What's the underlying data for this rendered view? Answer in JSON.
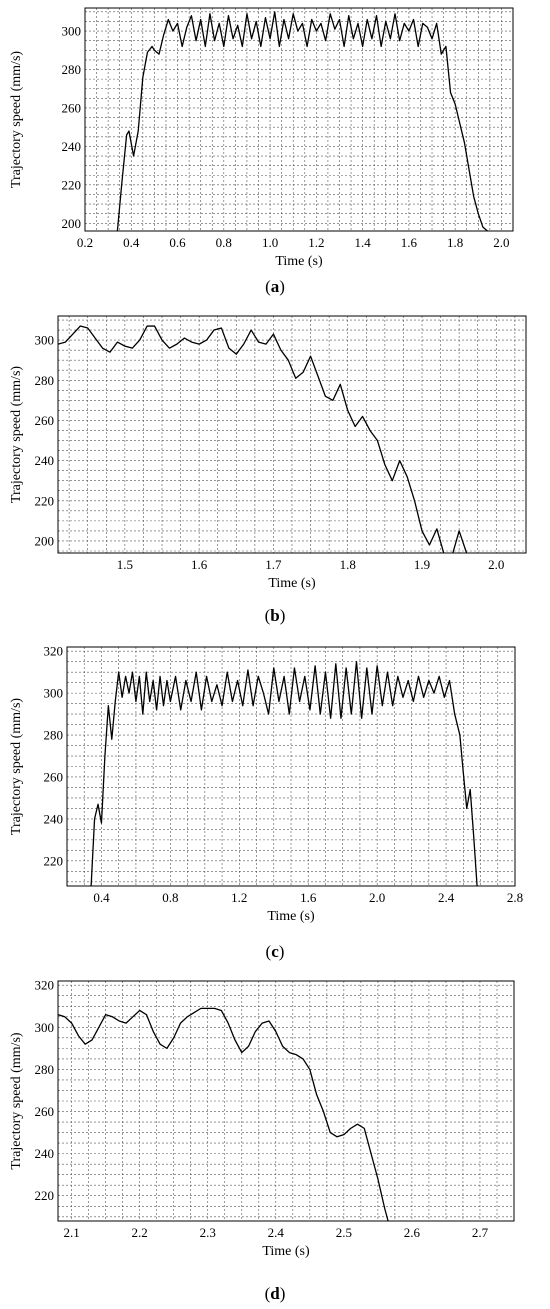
{
  "chart_data": [
    {
      "type": "line",
      "panel_label": "a",
      "xlabel": "Time (s)",
      "ylabel": "Trajectory speed (mm/s)",
      "xlim": [
        0.2,
        2.05
      ],
      "ylim": [
        196,
        312
      ],
      "xticks": [
        0.2,
        0.4,
        0.6,
        0.8,
        1.0,
        1.2,
        1.4,
        1.6,
        1.8,
        2.0
      ],
      "xtick_labels": [
        "0.2",
        "0.4",
        "0.6",
        "0.8",
        "1.0",
        "1.2",
        "1.4",
        "1.6",
        "1.8",
        "2.0"
      ],
      "yticks": [
        200,
        220,
        240,
        260,
        280,
        300
      ],
      "ytick_labels": [
        "200",
        "220",
        "240",
        "260",
        "280",
        "300"
      ],
      "grid": true,
      "series": [
        {
          "x": [
            0.34,
            0.36,
            0.38,
            0.39,
            0.41,
            0.43,
            0.45,
            0.47,
            0.49,
            0.5,
            0.52,
            0.54,
            0.56,
            0.58,
            0.6,
            0.62,
            0.64,
            0.66,
            0.68,
            0.7,
            0.72,
            0.74,
            0.76,
            0.78,
            0.8,
            0.82,
            0.84,
            0.86,
            0.88,
            0.9,
            0.92,
            0.94,
            0.96,
            0.98,
            1.0,
            1.02,
            1.04,
            1.06,
            1.08,
            1.1,
            1.12,
            1.14,
            1.16,
            1.18,
            1.2,
            1.22,
            1.24,
            1.26,
            1.28,
            1.3,
            1.32,
            1.34,
            1.36,
            1.38,
            1.4,
            1.42,
            1.44,
            1.46,
            1.48,
            1.5,
            1.52,
            1.54,
            1.56,
            1.58,
            1.6,
            1.62,
            1.64,
            1.66,
            1.68,
            1.7,
            1.72,
            1.74,
            1.76,
            1.78,
            1.8,
            1.82,
            1.84,
            1.86,
            1.88,
            1.9,
            1.92,
            1.94
          ],
          "y": [
            196,
            222,
            246,
            248,
            235,
            248,
            276,
            289,
            292,
            290,
            288,
            298,
            306,
            300,
            304,
            292,
            302,
            308,
            295,
            306,
            292,
            309,
            295,
            304,
            292,
            308,
            296,
            303,
            292,
            309,
            296,
            305,
            292,
            307,
            296,
            310,
            292,
            306,
            296,
            309,
            300,
            304,
            292,
            306,
            300,
            304,
            295,
            309,
            301,
            306,
            292,
            308,
            296,
            304,
            292,
            306,
            296,
            308,
            292,
            305,
            296,
            309,
            295,
            304,
            300,
            306,
            292,
            304,
            302,
            296,
            304,
            288,
            292,
            268,
            262,
            252,
            242,
            228,
            214,
            205,
            198,
            196
          ]
        }
      ]
    },
    {
      "type": "line",
      "panel_label": "b",
      "xlabel": "Time (s)",
      "ylabel": "Trajectory speed (mm/s)",
      "xlim": [
        1.41,
        2.04
      ],
      "ylim": [
        194,
        312
      ],
      "xticks": [
        1.5,
        1.6,
        1.7,
        1.8,
        1.9,
        2.0
      ],
      "xtick_labels": [
        "1.5",
        "1.6",
        "1.7",
        "1.8",
        "1.9",
        "2.0"
      ],
      "yticks": [
        200,
        220,
        240,
        260,
        280,
        300
      ],
      "ytick_labels": [
        "200",
        "220",
        "240",
        "260",
        "280",
        "300"
      ],
      "grid": true,
      "series": [
        {
          "x": [
            1.41,
            1.42,
            1.43,
            1.44,
            1.45,
            1.46,
            1.47,
            1.48,
            1.49,
            1.5,
            1.51,
            1.52,
            1.53,
            1.54,
            1.55,
            1.56,
            1.57,
            1.58,
            1.59,
            1.6,
            1.61,
            1.62,
            1.63,
            1.64,
            1.65,
            1.66,
            1.67,
            1.68,
            1.69,
            1.7,
            1.71,
            1.72,
            1.73,
            1.74,
            1.75,
            1.76,
            1.77,
            1.78,
            1.79,
            1.8,
            1.81,
            1.82,
            1.83,
            1.84,
            1.85,
            1.86,
            1.87,
            1.88,
            1.89,
            1.9,
            1.91,
            1.92,
            1.93,
            1.94,
            1.95,
            1.96
          ],
          "y": [
            298,
            299,
            303,
            307,
            306,
            301,
            296,
            294,
            299,
            297,
            296,
            300,
            307,
            307,
            300,
            296,
            298,
            301,
            299,
            298,
            300,
            305,
            306,
            296,
            293,
            298,
            305,
            299,
            298,
            303,
            295,
            290,
            281,
            284,
            292,
            282,
            272,
            270,
            278,
            265,
            257,
            262,
            255,
            250,
            238,
            230,
            240,
            232,
            220,
            205,
            198,
            206,
            193,
            192,
            205,
            194
          ]
        }
      ]
    },
    {
      "type": "line",
      "panel_label": "c",
      "xlabel": "Time (s)",
      "ylabel": "Trajectory speed (mm/s)",
      "xlim": [
        0.2,
        2.8
      ],
      "ylim": [
        208,
        322
      ],
      "xticks": [
        0.4,
        0.8,
        1.2,
        1.6,
        2.0,
        2.4,
        2.8
      ],
      "xtick_labels": [
        "0.4",
        "0.8",
        "1.2",
        "1.6",
        "2.0",
        "2.4",
        "2.8"
      ],
      "yticks": [
        220,
        240,
        260,
        280,
        300,
        320
      ],
      "ytick_labels": [
        "220",
        "240",
        "260",
        "280",
        "300",
        "320"
      ],
      "grid": true,
      "series": [
        {
          "x": [
            0.34,
            0.36,
            0.38,
            0.4,
            0.42,
            0.44,
            0.46,
            0.48,
            0.5,
            0.52,
            0.54,
            0.56,
            0.58,
            0.6,
            0.62,
            0.64,
            0.66,
            0.68,
            0.7,
            0.72,
            0.74,
            0.76,
            0.78,
            0.8,
            0.83,
            0.86,
            0.89,
            0.92,
            0.95,
            0.98,
            1.01,
            1.04,
            1.07,
            1.1,
            1.13,
            1.16,
            1.19,
            1.22,
            1.25,
            1.28,
            1.31,
            1.34,
            1.37,
            1.4,
            1.43,
            1.46,
            1.49,
            1.52,
            1.55,
            1.58,
            1.61,
            1.64,
            1.67,
            1.7,
            1.73,
            1.76,
            1.79,
            1.82,
            1.85,
            1.88,
            1.91,
            1.94,
            1.97,
            2.0,
            2.03,
            2.06,
            2.09,
            2.12,
            2.15,
            2.18,
            2.21,
            2.24,
            2.27,
            2.3,
            2.33,
            2.36,
            2.39,
            2.42,
            2.45,
            2.48,
            2.5,
            2.52,
            2.54,
            2.56,
            2.58
          ],
          "y": [
            208,
            240,
            247,
            238,
            270,
            294,
            278,
            296,
            310,
            298,
            308,
            300,
            310,
            296,
            308,
            290,
            310,
            296,
            306,
            292,
            308,
            294,
            306,
            296,
            308,
            292,
            306,
            296,
            310,
            292,
            308,
            296,
            304,
            294,
            310,
            296,
            306,
            294,
            311,
            294,
            308,
            300,
            290,
            312,
            296,
            308,
            290,
            312,
            296,
            308,
            292,
            313,
            290,
            310,
            288,
            314,
            288,
            312,
            290,
            315,
            288,
            312,
            290,
            313,
            294,
            310,
            294,
            308,
            298,
            306,
            296,
            308,
            298,
            306,
            300,
            308,
            298,
            306,
            290,
            280,
            262,
            245,
            254,
            232,
            208
          ]
        }
      ]
    },
    {
      "type": "line",
      "panel_label": "d",
      "xlabel": "Time (s)",
      "ylabel": "Trajectory speed (mm/s)",
      "xlim": [
        2.08,
        2.75
      ],
      "ylim": [
        208,
        322
      ],
      "xticks": [
        2.1,
        2.2,
        2.3,
        2.4,
        2.5,
        2.6,
        2.7
      ],
      "xtick_labels": [
        "2.1",
        "2.2",
        "2.3",
        "2.4",
        "2.5",
        "2.6",
        "2.7"
      ],
      "yticks": [
        220,
        240,
        260,
        280,
        300,
        320
      ],
      "ytick_labels": [
        "220",
        "240",
        "260",
        "280",
        "300",
        "320"
      ],
      "grid": true,
      "series": [
        {
          "x": [
            2.08,
            2.09,
            2.1,
            2.11,
            2.12,
            2.13,
            2.14,
            2.15,
            2.16,
            2.17,
            2.18,
            2.19,
            2.2,
            2.21,
            2.22,
            2.23,
            2.24,
            2.25,
            2.26,
            2.27,
            2.28,
            2.29,
            2.3,
            2.31,
            2.32,
            2.33,
            2.34,
            2.35,
            2.36,
            2.37,
            2.38,
            2.39,
            2.4,
            2.41,
            2.42,
            2.43,
            2.44,
            2.45,
            2.46,
            2.47,
            2.48,
            2.49,
            2.5,
            2.51,
            2.52,
            2.53,
            2.54,
            2.55,
            2.56,
            2.565
          ],
          "y": [
            306,
            305,
            302,
            296,
            292,
            294,
            300,
            306,
            305,
            303,
            302,
            305,
            308,
            306,
            298,
            292,
            290,
            295,
            302,
            305,
            307,
            309,
            309,
            309,
            308,
            302,
            294,
            288,
            291,
            298,
            302,
            303,
            298,
            291,
            288,
            287,
            285,
            280,
            268,
            260,
            250,
            248,
            249,
            252,
            254,
            252,
            240,
            228,
            214,
            208
          ]
        }
      ]
    }
  ]
}
